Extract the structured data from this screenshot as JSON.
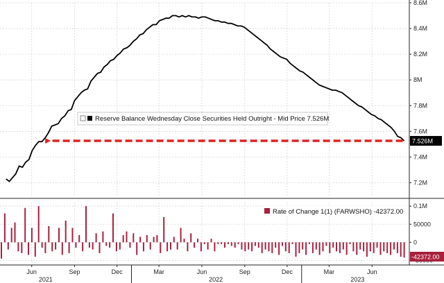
{
  "chart_data": [
    {
      "type": "line",
      "series": [
        {
          "name": "Reserve Balance Wednesday Close Securities Held Outright - Mid Price",
          "last_value_label": "7.526M",
          "color": "#000000",
          "points": [
            [
              "2021-04-07",
              7.23
            ],
            [
              "2021-04-14",
              7.21
            ],
            [
              "2021-04-21",
              7.24
            ],
            [
              "2021-04-28",
              7.27
            ],
            [
              "2021-05-05",
              7.33
            ],
            [
              "2021-05-12",
              7.32
            ],
            [
              "2021-05-19",
              7.36
            ],
            [
              "2021-05-26",
              7.38
            ],
            [
              "2021-06-02",
              7.45
            ],
            [
              "2021-06-09",
              7.49
            ],
            [
              "2021-06-16",
              7.52
            ],
            [
              "2021-06-23",
              7.52
            ],
            [
              "2021-06-30",
              7.55
            ],
            [
              "2021-07-07",
              7.59
            ],
            [
              "2021-07-14",
              7.64
            ],
            [
              "2021-07-21",
              7.65
            ],
            [
              "2021-07-28",
              7.66
            ],
            [
              "2021-08-04",
              7.7
            ],
            [
              "2021-08-11",
              7.72
            ],
            [
              "2021-08-18",
              7.76
            ],
            [
              "2021-08-25",
              7.77
            ],
            [
              "2021-09-01",
              7.84
            ],
            [
              "2021-09-08",
              7.87
            ],
            [
              "2021-09-15",
              7.9
            ],
            [
              "2021-09-22",
              7.92
            ],
            [
              "2021-09-29",
              7.93
            ],
            [
              "2021-10-06",
              7.99
            ],
            [
              "2021-10-13",
              8.02
            ],
            [
              "2021-10-20",
              8.05
            ],
            [
              "2021-10-27",
              8.06
            ],
            [
              "2021-11-03",
              8.1
            ],
            [
              "2021-11-10",
              8.12
            ],
            [
              "2021-11-17",
              8.15
            ],
            [
              "2021-11-24",
              8.16
            ],
            [
              "2021-12-01",
              8.19
            ],
            [
              "2021-12-08",
              8.21
            ],
            [
              "2021-12-15",
              8.24
            ],
            [
              "2021-12-22",
              8.25
            ],
            [
              "2021-12-29",
              8.27
            ],
            [
              "2022-01-05",
              8.3
            ],
            [
              "2022-01-12",
              8.32
            ],
            [
              "2022-01-19",
              8.35
            ],
            [
              "2022-01-26",
              8.36
            ],
            [
              "2022-02-02",
              8.39
            ],
            [
              "2022-02-09",
              8.41
            ],
            [
              "2022-02-16",
              8.43
            ],
            [
              "2022-02-23",
              8.43
            ],
            [
              "2022-03-02",
              8.46
            ],
            [
              "2022-03-09",
              8.47
            ],
            [
              "2022-03-16",
              8.48
            ],
            [
              "2022-03-23",
              8.48
            ],
            [
              "2022-03-30",
              8.5
            ],
            [
              "2022-04-06",
              8.5
            ],
            [
              "2022-04-13",
              8.49
            ],
            [
              "2022-04-20",
              8.5
            ],
            [
              "2022-04-27",
              8.49
            ],
            [
              "2022-05-04",
              8.5
            ],
            [
              "2022-05-11",
              8.49
            ],
            [
              "2022-05-18",
              8.49
            ],
            [
              "2022-05-25",
              8.48
            ],
            [
              "2022-06-01",
              8.49
            ],
            [
              "2022-06-08",
              8.49
            ],
            [
              "2022-06-15",
              8.48
            ],
            [
              "2022-06-22",
              8.47
            ],
            [
              "2022-06-29",
              8.46
            ],
            [
              "2022-07-06",
              8.46
            ],
            [
              "2022-07-13",
              8.45
            ],
            [
              "2022-07-20",
              8.45
            ],
            [
              "2022-07-27",
              8.44
            ],
            [
              "2022-08-03",
              8.44
            ],
            [
              "2022-08-10",
              8.43
            ],
            [
              "2022-08-17",
              8.42
            ],
            [
              "2022-08-24",
              8.42
            ],
            [
              "2022-08-31",
              8.41
            ],
            [
              "2022-09-07",
              8.39
            ],
            [
              "2022-09-14",
              8.37
            ],
            [
              "2022-09-21",
              8.35
            ],
            [
              "2022-09-28",
              8.33
            ],
            [
              "2022-10-05",
              8.31
            ],
            [
              "2022-10-12",
              8.29
            ],
            [
              "2022-10-19",
              8.27
            ],
            [
              "2022-10-26",
              8.24
            ],
            [
              "2022-11-02",
              8.22
            ],
            [
              "2022-11-09",
              8.2
            ],
            [
              "2022-11-16",
              8.18
            ],
            [
              "2022-11-23",
              8.17
            ],
            [
              "2022-11-30",
              8.16
            ],
            [
              "2022-12-07",
              8.13
            ],
            [
              "2022-12-14",
              8.11
            ],
            [
              "2022-12-21",
              8.09
            ],
            [
              "2022-12-28",
              8.07
            ],
            [
              "2023-01-04",
              8.06
            ],
            [
              "2023-01-11",
              8.04
            ],
            [
              "2023-01-18",
              8.02
            ],
            [
              "2023-01-25",
              8.0
            ],
            [
              "2023-02-01",
              7.98
            ],
            [
              "2023-02-08",
              7.96
            ],
            [
              "2023-02-15",
              7.95
            ],
            [
              "2023-02-22",
              7.94
            ],
            [
              "2023-03-01",
              7.93
            ],
            [
              "2023-03-08",
              7.92
            ],
            [
              "2023-03-15",
              7.92
            ],
            [
              "2023-03-22",
              7.91
            ],
            [
              "2023-03-29",
              7.9
            ],
            [
              "2023-04-05",
              7.88
            ],
            [
              "2023-04-12",
              7.86
            ],
            [
              "2023-04-19",
              7.84
            ],
            [
              "2023-04-26",
              7.82
            ],
            [
              "2023-05-03",
              7.8
            ],
            [
              "2023-05-10",
              7.79
            ],
            [
              "2023-05-17",
              7.77
            ],
            [
              "2023-05-24",
              7.75
            ],
            [
              "2023-05-31",
              7.73
            ],
            [
              "2023-06-07",
              7.72
            ],
            [
              "2023-06-14",
              7.7
            ],
            [
              "2023-06-21",
              7.69
            ],
            [
              "2023-06-28",
              7.67
            ],
            [
              "2023-07-05",
              7.65
            ],
            [
              "2023-07-12",
              7.63
            ],
            [
              "2023-07-19",
              7.6
            ],
            [
              "2023-07-26",
              7.56
            ],
            [
              "2023-08-02",
              7.55
            ],
            [
              "2023-08-09",
              7.526
            ]
          ]
        }
      ],
      "ylim": [
        7.1,
        8.6
      ],
      "y_ticks": [
        {
          "value": 7.2,
          "label": "7.2M"
        },
        {
          "value": 7.4,
          "label": "7.4M"
        },
        {
          "value": 7.6,
          "label": "7.6M"
        },
        {
          "value": 7.8,
          "label": "7.8M"
        },
        {
          "value": 8.0,
          "label": "8M"
        },
        {
          "value": 8.2,
          "label": "8.2M"
        },
        {
          "value": 8.4,
          "label": "8.4M"
        },
        {
          "value": 8.6,
          "label": "8.6M"
        }
      ],
      "axis_side": "right",
      "grid": true,
      "legend": "center",
      "annotation": {
        "type": "arrow",
        "color": "#dd2222",
        "style": "dashed",
        "from": [
          "2023-08-09",
          7.526
        ],
        "to": [
          "2021-06-30",
          7.55
        ]
      }
    },
    {
      "type": "bar",
      "series": [
        {
          "name": "Rate of Change 1(1) (FARWSHO)",
          "last_value_label": "-42372.00",
          "legend_value": "-42372.00",
          "color": "#a8203c",
          "values": [
            -45000,
            80000,
            -20000,
            40000,
            55000,
            -25000,
            -30000,
            95000,
            -35000,
            40000,
            -40000,
            100000,
            -15000,
            -30000,
            45000,
            -25000,
            -20000,
            40000,
            -35000,
            60000,
            -30000,
            40000,
            -15000,
            20000,
            -25000,
            100000,
            -15000,
            -20000,
            25000,
            -30000,
            30000,
            -10000,
            -15000,
            80000,
            -25000,
            -20000,
            20000,
            30000,
            -15000,
            25000,
            -35000,
            15000,
            -25000,
            20000,
            -20000,
            15000,
            20000,
            -30000,
            70000,
            -25000,
            -20000,
            15000,
            -20000,
            40000,
            10000,
            -25000,
            25000,
            -15000,
            10000,
            -25000,
            -5000,
            -20000,
            10000,
            -25000,
            -5000,
            -5000,
            -15000,
            -5000,
            -10000,
            -15000,
            -5000,
            -20000,
            -25000,
            -20000,
            -25000,
            -10000,
            -15000,
            -30000,
            -20000,
            -25000,
            -30000,
            -15000,
            -35000,
            -10000,
            -25000,
            -30000,
            -5000,
            -40000,
            -30000,
            -20000,
            -35000,
            -5000,
            -30000,
            -20000,
            -35000,
            -25000,
            -10000,
            -30000,
            -15000,
            -25000,
            -30000,
            -20000,
            -35000,
            -5000,
            -25000,
            -35000,
            -20000,
            -25000,
            -40000,
            -25000,
            -30000,
            -15000,
            -35000,
            -25000,
            -30000,
            -35000,
            -20000,
            -30000,
            -40000,
            -42372
          ]
        }
      ],
      "ylim": [
        -55000,
        110000
      ],
      "y_ticks": [
        {
          "value": 100000,
          "label": "0.1M"
        },
        {
          "value": 50000,
          "label": "50000"
        },
        {
          "value": 0,
          "label": "0"
        },
        {
          "value": -50000,
          "label": "-50000"
        }
      ],
      "axis_side": "right",
      "grid": true,
      "legend": "top-right"
    }
  ],
  "x_axis": {
    "start": "2021-03-25",
    "end": "2023-08-20",
    "month_ticks": [
      {
        "date": "2021-06-01",
        "label": "Jun"
      },
      {
        "date": "2021-09-01",
        "label": "Sep"
      },
      {
        "date": "2021-12-01",
        "label": "Dec"
      },
      {
        "date": "2022-03-01",
        "label": "Mar"
      },
      {
        "date": "2022-06-01",
        "label": "Jun"
      },
      {
        "date": "2022-09-01",
        "label": "Sep"
      },
      {
        "date": "2022-12-01",
        "label": "Dec"
      },
      {
        "date": "2023-03-01",
        "label": "Mar"
      },
      {
        "date": "2023-06-01",
        "label": "Jun"
      }
    ],
    "year_labels": [
      {
        "date": "2021-07-01",
        "label": "2021"
      },
      {
        "date": "2022-07-01",
        "label": "2022"
      },
      {
        "date": "2023-05-01",
        "label": "2023"
      }
    ],
    "year_separators": [
      "2022-01-01",
      "2023-01-01"
    ]
  }
}
